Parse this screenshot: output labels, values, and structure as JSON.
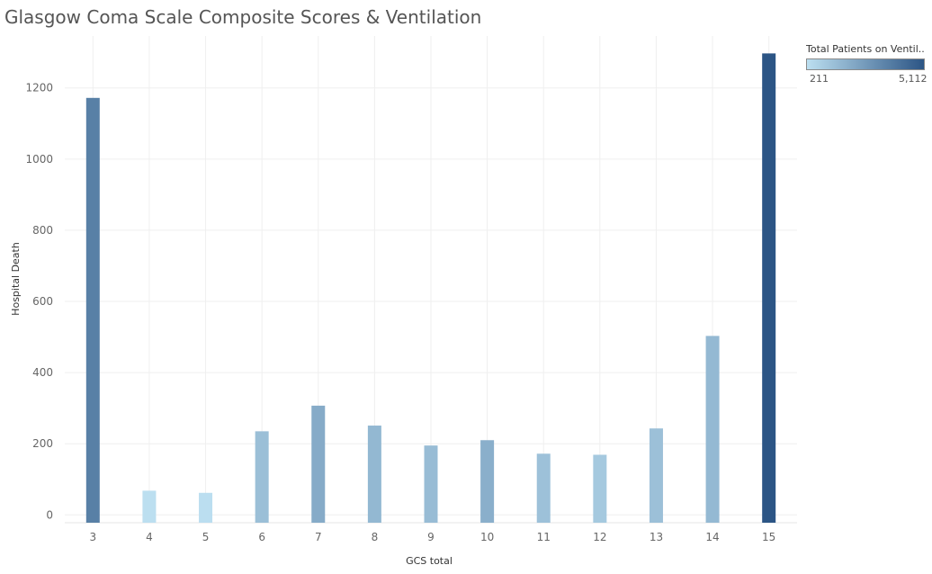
{
  "chart_data": {
    "type": "bar",
    "title": "Glasgow Coma Scale Composite Scores & Ventilation",
    "xlabel": "GCS total",
    "ylabel": "Hospital Death",
    "categories": [
      "3",
      "4",
      "5",
      "6",
      "7",
      "8",
      "9",
      "10",
      "11",
      "12",
      "13",
      "14",
      "15"
    ],
    "values": [
      1172,
      68,
      62,
      235,
      307,
      251,
      195,
      210,
      172,
      169,
      243,
      503,
      1297
    ],
    "color_values": [
      3600,
      211,
      230,
      1350,
      2050,
      1600,
      1450,
      1900,
      1280,
      1000,
      1300,
      1560,
      5112
    ],
    "ylim": [
      -22,
      1346
    ],
    "yticks": [
      0,
      200,
      400,
      600,
      800,
      1000,
      1200
    ],
    "grid": true,
    "color_legend": {
      "title": "Total Patients on Ventil..",
      "min_label": "211",
      "max_label": "5,112",
      "min": 211,
      "max": 5112,
      "color_low": "#bcdff0",
      "color_high": "#2c5585"
    }
  }
}
